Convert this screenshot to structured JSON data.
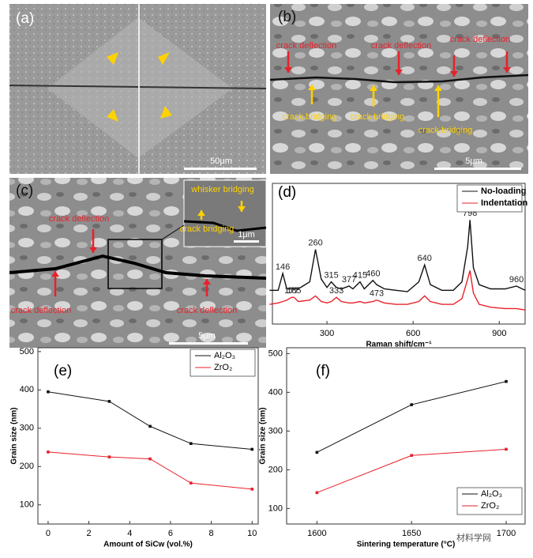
{
  "images": [
    {
      "label": "(a)",
      "scale_bar": "50μm"
    },
    {
      "label": "(b)",
      "scale_bar": "5μm",
      "annotations": [
        "crack deflection",
        "crack deflection",
        "crack deflection",
        "crack bridging",
        "crack bridging",
        "crack bridging"
      ]
    },
    {
      "label": "(c)",
      "scale_bar": "5μm",
      "inset_scale_bar": "1μm",
      "annotations": [
        "whisker bridging",
        "crack bridging",
        "crack deflection",
        "crack deflection",
        "crack deflection"
      ]
    }
  ],
  "chart_data": [
    {
      "type": "line",
      "label": "(d)",
      "x_label": "Raman shift/cm⁻¹",
      "xlim": [
        110,
        990
      ],
      "xticks": [
        300,
        600,
        900
      ],
      "ylim": [
        0,
        100
      ],
      "markers": false,
      "legend": "top-right",
      "x": [
        100,
        130,
        146,
        160,
        177,
        185,
        200,
        240,
        260,
        280,
        300,
        315,
        333,
        350,
        377,
        390,
        415,
        430,
        460,
        473,
        500,
        540,
        580,
        620,
        640,
        660,
        700,
        740,
        770,
        790,
        798,
        810,
        830,
        870,
        920,
        960,
        990
      ],
      "series": [
        {
          "name": "No-loading",
          "color": "#111111",
          "values": [
            24,
            24,
            36,
            25,
            25,
            25,
            25,
            30,
            53,
            32,
            26,
            30,
            26,
            25,
            27,
            25,
            30,
            25,
            31,
            28,
            25,
            24,
            23,
            30,
            42,
            28,
            24,
            24,
            30,
            55,
            74,
            40,
            28,
            25,
            25,
            27,
            24
          ],
          "peaks": [
            146,
            260,
            315,
            377,
            415,
            460,
            640,
            798,
            960
          ]
        },
        {
          "name": "Indentation",
          "color": "#e8212a",
          "values": [
            14,
            15,
            16,
            17,
            19,
            19,
            16,
            17,
            20,
            16,
            15,
            16,
            19,
            16,
            15,
            15,
            16,
            15,
            16,
            17,
            15,
            14,
            14,
            16,
            20,
            16,
            14,
            14,
            18,
            32,
            38,
            22,
            14,
            12,
            11,
            11,
            10
          ],
          "peaks": [
            177,
            185,
            333,
            473
          ]
        }
      ]
    },
    {
      "type": "line",
      "label": "(e)",
      "x_label": "Amount of SiCw (vol.%)",
      "y_label": "Grain size (nm)",
      "xlim": [
        -0.5,
        10.3
      ],
      "xticks": [
        0,
        2,
        4,
        6,
        8,
        10
      ],
      "ylim": [
        50,
        510
      ],
      "yticks": [
        100,
        200,
        300,
        400,
        500
      ],
      "markers": true,
      "legend": "top-right",
      "x": [
        0,
        3,
        5,
        7,
        10
      ],
      "series": [
        {
          "name": "Al₂O₃",
          "color": "#111111",
          "values": [
            395,
            370,
            305,
            260,
            245
          ]
        },
        {
          "name": "ZrO₂",
          "color": "#e8212a",
          "values": [
            238,
            225,
            220,
            157,
            141
          ]
        }
      ]
    },
    {
      "type": "line",
      "label": "(f)",
      "x_label": "Sintering temperature (°C)",
      "y_label": "Grain size (nm)",
      "xlim": [
        1584,
        1710
      ],
      "xticks": [
        1600,
        1650,
        1700
      ],
      "ylim": [
        60,
        515
      ],
      "yticks": [
        100,
        200,
        300,
        400,
        500
      ],
      "markers": true,
      "legend": "bottom-right",
      "x": [
        1600,
        1650,
        1700
      ],
      "series": [
        {
          "name": "Al₂O₃",
          "color": "#111111",
          "values": [
            245,
            368,
            428
          ]
        },
        {
          "name": "ZrO₂",
          "color": "#e8212a",
          "values": [
            141,
            237,
            253
          ]
        }
      ]
    }
  ],
  "watermark": "材料学网"
}
